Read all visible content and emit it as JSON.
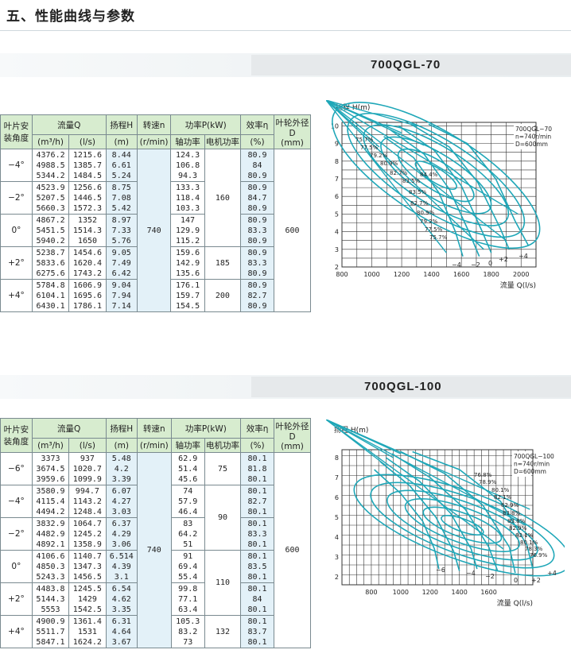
{
  "page": {
    "section_title": "五、性能曲线与参数"
  },
  "table_header": {
    "angle": "叶片安装角度",
    "flow": "流量Q",
    "flow_m3h": "(m³/h)",
    "flow_ls": "(l/s)",
    "head": "扬程H",
    "head_unit": "(m)",
    "speed": "转速n",
    "speed_unit": "(r/min)",
    "power": "功率P(kW)",
    "shaft_power": "轴功率",
    "motor_power": "电机功率",
    "efficiency": "效率η",
    "efficiency_unit": "(%)",
    "diameter": "叶轮外径D",
    "diameter_unit": "(mm)"
  },
  "models": [
    {
      "name": "700QGL-70",
      "speed": "740",
      "diameter": "600",
      "groups": [
        {
          "angle": "−4°",
          "motor": "",
          "rows": [
            [
              "4376.2",
              "1215.6",
              "8.44",
              "124.3",
              "80.9"
            ],
            [
              "4988.5",
              "1385.7",
              "6.61",
              "106.8",
              "84"
            ],
            [
              "5344.2",
              "1484.5",
              "5.24",
              "94.3",
              "80.9"
            ]
          ]
        },
        {
          "angle": "−2°",
          "motor": "160",
          "rows": [
            [
              "4523.9",
              "1256.6",
              "8.75",
              "133.3",
              "80.9"
            ],
            [
              "5207.5",
              "1446.5",
              "7.08",
              "118.4",
              "84.7"
            ],
            [
              "5660.3",
              "1572.3",
              "5.42",
              "103.3",
              "80.9"
            ]
          ]
        },
        {
          "angle": "0°",
          "motor": "",
          "rows": [
            [
              "4867.2",
              "1352",
              "8.97",
              "147",
              "80.9"
            ],
            [
              "5451.5",
              "1514.3",
              "7.33",
              "129.9",
              "83.3"
            ],
            [
              "5940.2",
              "1650",
              "5.76",
              "115.2",
              "80.9"
            ]
          ]
        },
        {
          "angle": "+2°",
          "motor": "185",
          "rows": [
            [
              "5238.7",
              "1454.6",
              "9.05",
              "159.6",
              "80.9"
            ],
            [
              "5833.6",
              "1620.4",
              "7.49",
              "142.9",
              "83.3"
            ],
            [
              "6275.6",
              "1743.2",
              "6.42",
              "135.6",
              "80.9"
            ]
          ]
        },
        {
          "angle": "+4°",
          "motor": "200",
          "rows": [
            [
              "5784.8",
              "1606.9",
              "9.04",
              "176.1",
              "80.9"
            ],
            [
              "6104.1",
              "1695.6",
              "7.94",
              "159.7",
              "82.7"
            ],
            [
              "6430.1",
              "1786.1",
              "7.14",
              "154.5",
              "80.9"
            ]
          ]
        }
      ],
      "chart": {
        "y_title": "扬程 H(m)",
        "x_title": "流量 Q(l/s)",
        "info_lines": [
          "700QGL−70",
          "n=740r/min",
          "D=600mm"
        ],
        "x_ticks": [
          "800",
          "1000",
          "1200",
          "1400",
          "1600",
          "1800",
          "2000"
        ],
        "y_ticks": [
          "2",
          "3",
          "4",
          "5",
          "6",
          "7",
          "8",
          "9",
          "10"
        ],
        "eff_labels": [
          "75.7%",
          "77.5%",
          "79.2%",
          "80.9%",
          "82.7%",
          "84.4%",
          "83.5%",
          "83.5%",
          "82.7%",
          "80.9%",
          "79.2%",
          "77.5%",
          "75.7%"
        ],
        "angle_labels": [
          "−4",
          "−2",
          "0",
          "+2",
          "+4"
        ]
      }
    },
    {
      "name": "700QGL-100",
      "speed": "740",
      "diameter": "600",
      "groups": [
        {
          "angle": "−6°",
          "motor": "75",
          "rows": [
            [
              "3373",
              "937",
              "5.48",
              "62.9",
              "80.1"
            ],
            [
              "3674.5",
              "1020.7",
              "4.2",
              "51.4",
              "81.8"
            ],
            [
              "3959.6",
              "1099.9",
              "3.39",
              "45.6",
              "80.1"
            ]
          ]
        },
        {
          "angle": "−4°",
          "motor": "",
          "rows": [
            [
              "3580.9",
              "994.7",
              "6.07",
              "74",
              "80.1"
            ],
            [
              "4115.4",
              "1143.2",
              "4.27",
              "57.9",
              "82.7"
            ],
            [
              "4494.2",
              "1248.4",
              "3.03",
              "46.4",
              "80.1"
            ]
          ]
        },
        {
          "angle": "−2°",
          "motor": "90",
          "rows": [
            [
              "3832.9",
              "1064.7",
              "6.37",
              "83",
              "80.1"
            ],
            [
              "4482.9",
              "1245.2",
              "4.29",
              "64.2",
              "83.3"
            ],
            [
              "4892.1",
              "1358.9",
              "3.06",
              "51",
              "80.1"
            ]
          ]
        },
        {
          "angle": "0°",
          "motor": "110",
          "rows": [
            [
              "4106.6",
              "1140.7",
              "6.514",
              "91",
              "80.1"
            ],
            [
              "4850.3",
              "1347.3",
              "4.39",
              "69.4",
              "83.5"
            ],
            [
              "5243.3",
              "1456.5",
              "3.1",
              "55.4",
              "80.1"
            ]
          ]
        },
        {
          "angle": "+2°",
          "motor": "",
          "rows": [
            [
              "4483.8",
              "1245.5",
              "6.54",
              "99.8",
              "80.1"
            ],
            [
              "5144.3",
              "1429",
              "4.62",
              "77.1",
              "84"
            ],
            [
              "5553",
              "1542.5",
              "3.35",
              "63.4",
              "80.1"
            ]
          ]
        },
        {
          "angle": "+4°",
          "motor": "132",
          "rows": [
            [
              "4900.9",
              "1361.4",
              "6.31",
              "105.3",
              "80.1"
            ],
            [
              "5511.7",
              "1531",
              "4.64",
              "83.2",
              "83.7"
            ],
            [
              "5847.1",
              "1624.2",
              "3.67",
              "73",
              "80.1"
            ]
          ]
        }
      ],
      "chart": {
        "y_title": "扬程 H(m)",
        "x_title": "流量 Q(l/s)",
        "info_lines": [
          "700QGL−100",
          "n=740r/min",
          "D=600mm"
        ],
        "x_ticks": [
          "800",
          "1000",
          "1200",
          "1400",
          "1600"
        ],
        "y_ticks": [
          "2",
          "3",
          "4",
          "5",
          "6",
          "7",
          "8"
        ],
        "eff_labels": [
          "76.8%",
          "78.9%",
          "80.1%",
          "82.1%",
          "82.9%",
          "83.8%",
          "83.8%",
          "82.9%",
          "82.1%",
          "80.1%",
          "78.3%",
          "76.9%"
        ],
        "angle_labels": [
          "−6",
          "−4",
          "−2",
          "0",
          "+2",
          "+4"
        ]
      }
    }
  ],
  "colors": {
    "curve": "#1fa7b8",
    "grid": "#333333",
    "header_green": "#d7eccf",
    "col_blue": "#e3f1f8"
  }
}
